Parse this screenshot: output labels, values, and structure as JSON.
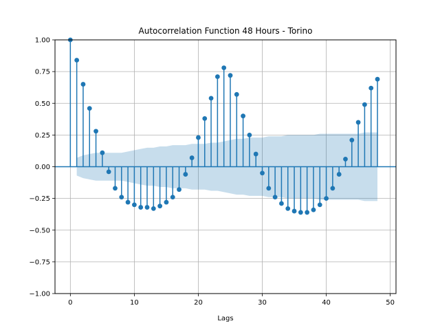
{
  "chart_data": {
    "type": "stem",
    "title": "Autocorrelation Function 48 Hours - Torino",
    "xlabel": "Lags",
    "ylabel": "",
    "xlim": [
      -2.4,
      50.9
    ],
    "ylim": [
      -1.0,
      1.0
    ],
    "xticks": [
      0,
      10,
      20,
      30,
      40,
      50
    ],
    "yticks": [
      -1.0,
      -0.75,
      -0.5,
      -0.25,
      0.0,
      0.25,
      0.5,
      0.75,
      1.0
    ],
    "xtick_labels": [
      "0",
      "10",
      "20",
      "30",
      "40",
      "50"
    ],
    "ytick_labels": [
      "−1.00",
      "−0.75",
      "−0.50",
      "−0.25",
      "0.00",
      "0.25",
      "0.50",
      "0.75",
      "1.00"
    ],
    "grid": true,
    "color": "#1f77b4",
    "band_color": "#1f77b4",
    "lags": [
      0,
      1,
      2,
      3,
      4,
      5,
      6,
      7,
      8,
      9,
      10,
      11,
      12,
      13,
      14,
      15,
      16,
      17,
      18,
      19,
      20,
      21,
      22,
      23,
      24,
      25,
      26,
      27,
      28,
      29,
      30,
      31,
      32,
      33,
      34,
      35,
      36,
      37,
      38,
      39,
      40,
      41,
      42,
      43,
      44,
      45,
      46,
      47,
      48
    ],
    "acf": [
      1.0,
      0.84,
      0.65,
      0.46,
      0.28,
      0.11,
      -0.04,
      -0.17,
      -0.24,
      -0.28,
      -0.3,
      -0.32,
      -0.32,
      -0.33,
      -0.31,
      -0.28,
      -0.24,
      -0.18,
      -0.06,
      0.07,
      0.23,
      0.38,
      0.54,
      0.71,
      0.78,
      0.72,
      0.57,
      0.4,
      0.25,
      0.1,
      -0.05,
      -0.17,
      -0.24,
      -0.29,
      -0.33,
      -0.35,
      -0.36,
      -0.36,
      -0.34,
      -0.3,
      -0.25,
      -0.17,
      -0.06,
      0.06,
      0.21,
      0.35,
      0.49,
      0.62,
      0.69
    ],
    "confidence_band": [
      0.0,
      0.07,
      0.09,
      0.1,
      0.11,
      0.11,
      0.11,
      0.11,
      0.11,
      0.12,
      0.13,
      0.14,
      0.15,
      0.15,
      0.16,
      0.16,
      0.17,
      0.17,
      0.17,
      0.18,
      0.18,
      0.18,
      0.19,
      0.19,
      0.2,
      0.21,
      0.22,
      0.22,
      0.23,
      0.23,
      0.23,
      0.24,
      0.24,
      0.24,
      0.25,
      0.25,
      0.25,
      0.25,
      0.25,
      0.26,
      0.26,
      0.26,
      0.26,
      0.26,
      0.26,
      0.26,
      0.27,
      0.27,
      0.27
    ]
  }
}
